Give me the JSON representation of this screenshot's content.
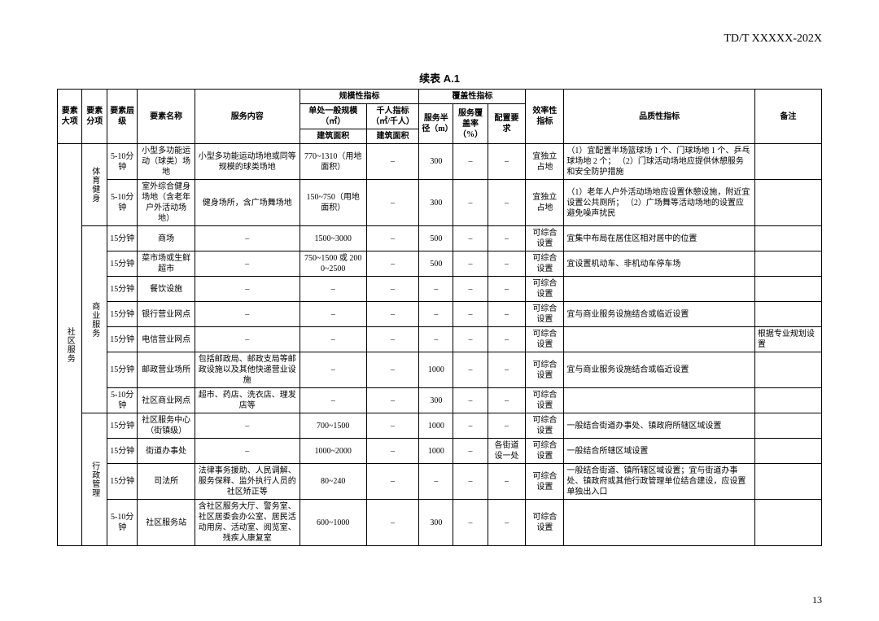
{
  "doc_id": "TD/T  XXXXX-202X",
  "table_title": "续表 A.1",
  "page_num": "13",
  "header": {
    "c1": "要素大项",
    "c2": "要素分项",
    "c3": "要素层级",
    "c4": "要素名称",
    "c5": "服务内容",
    "g_scale": "规模性指标",
    "g_cov": "覆盖性指标",
    "c6a": "单处一般规模（㎡）",
    "c6b": "千人指标（㎡/千人）",
    "c6a2": "建筑面积",
    "c6b2": "建筑面积",
    "c7": "服务半径（m）",
    "c8": "服务覆盖率（%）",
    "c9": "配置要求",
    "c10": "效率性指标",
    "c11": "品质性指标",
    "c12": "备注"
  },
  "cat_major": "社区服务",
  "groups": [
    {
      "name": "体育健身",
      "rows": [
        {
          "lvl": "5-10分钟",
          "elem": "小型多功能运动（球类）场地",
          "svc": "小型多功能运动场地或同等规模的球类场地",
          "scale": "770~1310（用地面积）",
          "kilo": "–",
          "radius": "300",
          "cov": "–",
          "req": "–",
          "eff": "宜独立占地",
          "qual": "（1）宜配置半场篮球场 1 个、门球场地 1 个、乒乓球场地 2 个；\n（2）门球活动场地应提供休憩服务和安全防护措施",
          "note": ""
        },
        {
          "lvl": "5-10分钟",
          "elem": "室外综合健身场地（含老年户外活动场地）",
          "svc": "健身场所，含广场舞场地",
          "scale": "150~750（用地面积）",
          "kilo": "–",
          "radius": "300",
          "cov": "–",
          "req": "–",
          "eff": "宜独立占地",
          "qual": "（1）老年人户外活动场地应设置休憩设施，附近宜设置公共厕所；\n（2）广场舞等活动场地的设置应避免噪声扰民",
          "note": ""
        }
      ]
    },
    {
      "name": "商业服务",
      "rows": [
        {
          "lvl": "15分钟",
          "elem": "商场",
          "svc": "–",
          "scale": "1500~3000",
          "kilo": "–",
          "radius": "500",
          "cov": "–",
          "req": "–",
          "eff": "可综合设置",
          "qual": "宜集中布局在居住区相对居中的位置",
          "note": ""
        },
        {
          "lvl": "15分钟",
          "elem": "菜市场或生鲜超市",
          "svc": "–",
          "scale": "750~1500 或 2000~2500",
          "kilo": "–",
          "radius": "500",
          "cov": "–",
          "req": "–",
          "eff": "可综合设置",
          "qual": "宜设置机动车、非机动车停车场",
          "note": ""
        },
        {
          "lvl": "15分钟",
          "elem": "餐饮设施",
          "svc": "–",
          "scale": "–",
          "kilo": "–",
          "radius": "–",
          "cov": "–",
          "req": "–",
          "eff": "可综合设置",
          "qual": "",
          "note": ""
        },
        {
          "lvl": "15分钟",
          "elem": "银行营业网点",
          "svc": "–",
          "scale": "–",
          "kilo": "–",
          "radius": "–",
          "cov": "–",
          "req": "–",
          "eff": "可综合设置",
          "qual": "宜与商业服务设施结合或临近设置",
          "note": ""
        },
        {
          "lvl": "15分钟",
          "elem": "电信营业网点",
          "svc": "–",
          "scale": "–",
          "kilo": "–",
          "radius": "–",
          "cov": "–",
          "req": "–",
          "eff": "可综合设置",
          "qual": "",
          "note": "根据专业规划设置"
        },
        {
          "lvl": "15分钟",
          "elem": "邮政营业场所",
          "svc": "包括邮政局、邮政支局等邮政设施以及其他快递营业设施",
          "scale": "–",
          "kilo": "–",
          "radius": "1000",
          "cov": "–",
          "req": "–",
          "eff": "可综合设置",
          "qual": "宜与商业服务设施结合或临近设置",
          "note": ""
        },
        {
          "lvl": "5-10分钟",
          "elem": "社区商业网点",
          "svc": "超市、药店、洗衣店、理发店等",
          "scale": "–",
          "kilo": "–",
          "radius": "300",
          "cov": "–",
          "req": "–",
          "eff": "可综合设置",
          "qual": "",
          "note": ""
        }
      ]
    },
    {
      "name": "行政管理",
      "rows": [
        {
          "lvl": "15分钟",
          "elem": "社区服务中心（街镇级）",
          "svc": "–",
          "scale": "700~1500",
          "kilo": "–",
          "radius": "1000",
          "cov": "–",
          "req": "–",
          "eff": "可综合设置",
          "qual": "一般结合街道办事处、镇政府所辖区域设置",
          "note": ""
        },
        {
          "lvl": "15分钟",
          "elem": "街道办事处",
          "svc": "–",
          "scale": "1000~2000",
          "kilo": "–",
          "radius": "1000",
          "cov": "–",
          "req": "各街道设一处",
          "eff": "可综合设置",
          "qual": "一般结合所辖区域设置",
          "note": ""
        },
        {
          "lvl": "15分钟",
          "elem": "司法所",
          "svc": "法律事务援助、人民调解、服务保释、监外执行人员的社区矫正等",
          "scale": "80~240",
          "kilo": "–",
          "radius": "–",
          "cov": "–",
          "req": "–",
          "eff": "可综合设置",
          "qual": "一般结合街道、镇所辖区域设置；宜与街道办事处、镇政府或其他行政管理单位结合建设，应设置单独出入口",
          "note": ""
        },
        {
          "lvl": "5-10分钟",
          "elem": "社区服务站",
          "svc": "含社区服务大厅、警务室、社区居委会办公室、居民活动用房、活动室、阅览室、残疾人康复室",
          "scale": "600~1000",
          "kilo": "–",
          "radius": "300",
          "cov": "–",
          "req": "–",
          "eff": "可综合设置",
          "qual": "",
          "note": ""
        }
      ]
    }
  ]
}
